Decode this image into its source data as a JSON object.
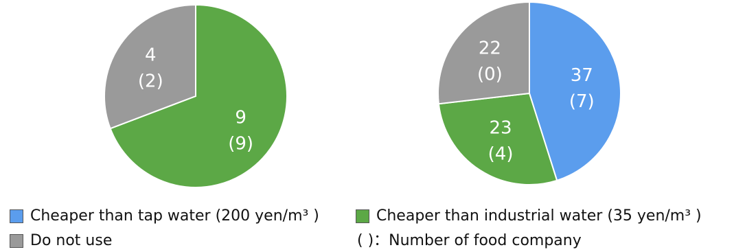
{
  "colors": {
    "tap": "#5b9ded",
    "industrial": "#5ca846",
    "not_use": "#9a9a9a"
  },
  "chart_data": [
    {
      "type": "pie",
      "slices": [
        {
          "category": "Cheaper than industrial water (35 yen/m³ )",
          "value": 9,
          "companies": 9,
          "label": "9",
          "sub_label": "(9)",
          "color": "#5ca846"
        },
        {
          "category": "Do not use",
          "value": 4,
          "companies": 2,
          "label": "4",
          "sub_label": "(2)",
          "color": "#9a9a9a"
        }
      ]
    },
    {
      "type": "pie",
      "slices": [
        {
          "category": "Cheaper than tap water (200 yen/m³ )",
          "value": 37,
          "companies": 7,
          "label": "37",
          "sub_label": "(7)",
          "color": "#5b9ded"
        },
        {
          "category": "Cheaper than industrial water (35 yen/m³ )",
          "value": 23,
          "companies": 4,
          "label": "23",
          "sub_label": "(4)",
          "color": "#5ca846"
        },
        {
          "category": "Do not use",
          "value": 22,
          "companies": 0,
          "label": "22",
          "sub_label": "(0)",
          "color": "#9a9a9a"
        }
      ]
    }
  ],
  "legend": {
    "tap": "Cheaper than tap water (200 yen/m³ )",
    "industrial": "Cheaper than industrial water (35 yen/m³ )",
    "not_use": "Do not use",
    "note": "(   )：Number of food company"
  }
}
